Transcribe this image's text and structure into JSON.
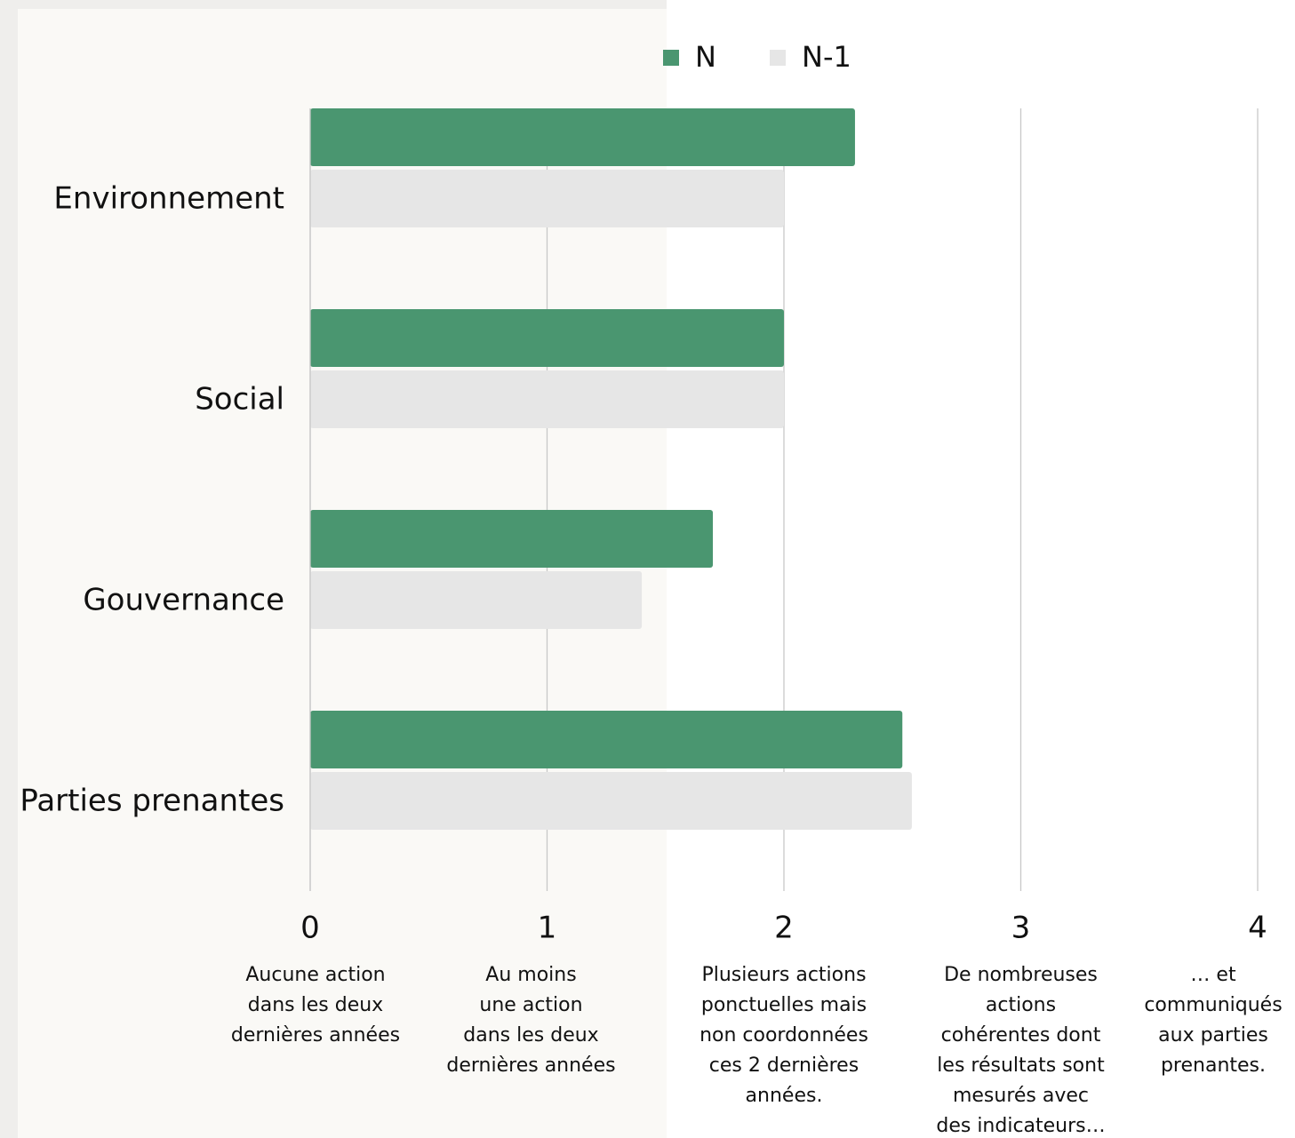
{
  "chart_data": {
    "type": "hbar",
    "categories": [
      "Environnement",
      "Social",
      "Gouvernance",
      "Parties prenantes"
    ],
    "series": [
      {
        "name": "N",
        "color": "#4a9670",
        "values": [
          2.3,
          2.0,
          1.7,
          2.5
        ]
      },
      {
        "name": "N-1",
        "color": "#e6e6e6",
        "values": [
          2.0,
          2.0,
          1.4,
          2.54
        ]
      }
    ],
    "xlim": [
      0,
      4
    ],
    "xticks": [
      0,
      1,
      2,
      3,
      4
    ],
    "grid": true,
    "legend": "top",
    "xtick_descriptions": [
      [
        "Aucune action",
        "dans les deux",
        "dernières années"
      ],
      [
        "Au moins",
        "une action",
        "dans les deux",
        "dernières années"
      ],
      [
        "Plusieurs actions",
        "ponctuelles mais",
        "non coordonnées",
        "ces 2 dernières",
        "années."
      ],
      [
        "De nombreuses",
        "actions",
        "cohérentes dont",
        "les résultats sont",
        "mesurés avec",
        "des indicateurs…"
      ],
      [
        "… et",
        "communiqués",
        "aux parties",
        "prenantes."
      ]
    ]
  }
}
